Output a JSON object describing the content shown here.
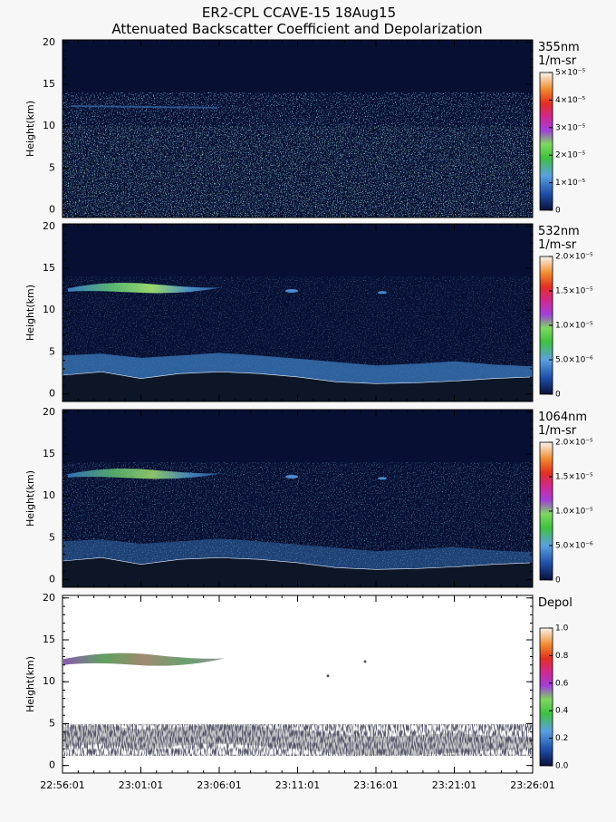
{
  "title": [
    "ER2-CPL CCAVE-15 18Aug15",
    "Attenuated Backscatter Coefficient and Depolarization"
  ],
  "chart_data": [
    {
      "type": "curtain",
      "ylabel": "Height(km)",
      "ylim": [
        -0.9,
        20.3
      ],
      "yticks": [
        0,
        5,
        10,
        15,
        20
      ],
      "colorbar": {
        "label": [
          "355nm",
          "1/m-sr"
        ],
        "lim": [
          0,
          5e-05
        ],
        "ticks": [
          {
            "value": 0,
            "label": "0"
          },
          {
            "value": 1e-05,
            "label": "1×10⁻⁵"
          },
          {
            "value": 2e-05,
            "label": "2×10⁻⁵"
          },
          {
            "value": 3e-05,
            "label": "3×10⁻⁵"
          },
          {
            "value": 4e-05,
            "label": "4×10⁻⁵"
          },
          {
            "value": 5e-05,
            "label": "5×10⁻⁵"
          }
        ]
      }
    },
    {
      "type": "curtain",
      "ylabel": "Height(km)",
      "ylim": [
        -0.9,
        20.3
      ],
      "yticks": [
        0,
        5,
        10,
        15,
        20
      ],
      "colorbar": {
        "label": [
          "532nm",
          "1/m-sr"
        ],
        "lim": [
          0,
          2e-05
        ],
        "ticks": [
          {
            "value": 0,
            "label": "0"
          },
          {
            "value": 5e-06,
            "label": "5.0×10⁻⁶"
          },
          {
            "value": 1e-05,
            "label": "1.0×10⁻⁵"
          },
          {
            "value": 1.5e-05,
            "label": "1.5×10⁻⁵"
          },
          {
            "value": 2e-05,
            "label": "2.0×10⁻⁵"
          }
        ]
      }
    },
    {
      "type": "curtain",
      "ylabel": "Height(km)",
      "ylim": [
        -0.9,
        20.3
      ],
      "yticks": [
        0,
        5,
        10,
        15,
        20
      ],
      "colorbar": {
        "label": [
          "1064nm",
          "1/m-sr"
        ],
        "lim": [
          0,
          2e-05
        ],
        "ticks": [
          {
            "value": 0,
            "label": "0"
          },
          {
            "value": 5e-06,
            "label": "5.0×10⁻⁶"
          },
          {
            "value": 1e-05,
            "label": "1.0×10⁻⁵"
          },
          {
            "value": 1.5e-05,
            "label": "1.5×10⁻⁵"
          },
          {
            "value": 2e-05,
            "label": "2.0×10⁻⁵"
          }
        ]
      }
    },
    {
      "type": "curtain",
      "ylabel": "Height(km)",
      "ylim": [
        -0.9,
        20.3
      ],
      "yticks": [
        0,
        5,
        10,
        15,
        20
      ],
      "colorbar": {
        "label": [
          "Depol"
        ],
        "lim": [
          0,
          1
        ],
        "ticks": [
          {
            "value": 0,
            "label": "0.0"
          },
          {
            "value": 0.2,
            "label": "0.2"
          },
          {
            "value": 0.4,
            "label": "0.4"
          },
          {
            "value": 0.6,
            "label": "0.6"
          },
          {
            "value": 0.8,
            "label": "0.8"
          },
          {
            "value": 1,
            "label": "1.0"
          }
        ]
      },
      "xticks": [
        "22:56:01",
        "23:01:01",
        "23:06:01",
        "23:11:01",
        "23:16:01",
        "23:21:01",
        "23:26:01"
      ]
    }
  ]
}
